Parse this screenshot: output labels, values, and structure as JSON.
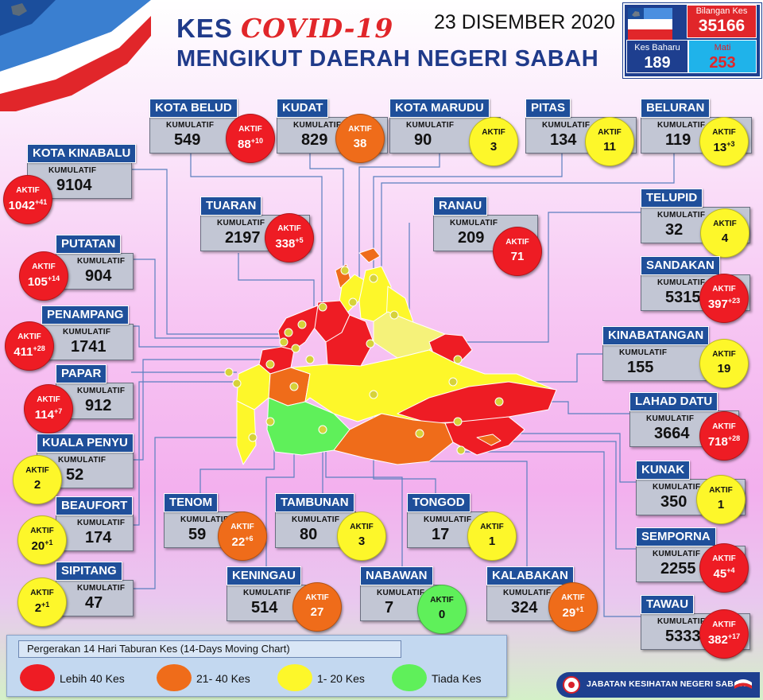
{
  "header": {
    "title_kes": "KES",
    "title_covid": "COVID-19",
    "title_line2": "MENGIKUT DAERAH NEGERI SABAH",
    "date": "23 DISEMBER 2020"
  },
  "summary": {
    "total_label": "Bilangan Kes",
    "total_value": "35166",
    "new_label": "Kes Baharu",
    "new_value": "189",
    "death_label": "Mati",
    "death_value": "253"
  },
  "labels": {
    "kumulatif": "KUMULATIF",
    "aktif": "AKTIF"
  },
  "colors": {
    "red": "#ee1c24",
    "orange": "#ef6c1a",
    "yellow": "#fdf72a",
    "green": "#5ff05a",
    "header_blue": "#1f4f9a",
    "title_blue": "#1f3a8a"
  },
  "districts": [
    {
      "name": "KOTA BELUD",
      "kumulatif": "549",
      "aktif": "88",
      "aktif_new": "+10",
      "level": "red"
    },
    {
      "name": "KUDAT",
      "kumulatif": "829",
      "aktif": "38",
      "aktif_new": "",
      "level": "orange"
    },
    {
      "name": "KOTA MARUDU",
      "kumulatif": "90",
      "aktif": "3",
      "aktif_new": "",
      "level": "yellow"
    },
    {
      "name": "PITAS",
      "kumulatif": "134",
      "aktif": "11",
      "aktif_new": "",
      "level": "yellow"
    },
    {
      "name": "BELURAN",
      "kumulatif": "119",
      "aktif": "13",
      "aktif_new": "+3",
      "level": "yellow"
    },
    {
      "name": "KOTA KINABALU",
      "kumulatif": "9104",
      "aktif": "1042",
      "aktif_new": "+41",
      "level": "red"
    },
    {
      "name": "TUARAN",
      "kumulatif": "2197",
      "aktif": "338",
      "aktif_new": "+5",
      "level": "red"
    },
    {
      "name": "RANAU",
      "kumulatif": "209",
      "aktif": "71",
      "aktif_new": "",
      "level": "red"
    },
    {
      "name": "TELUPID",
      "kumulatif": "32",
      "aktif": "4",
      "aktif_new": "",
      "level": "yellow"
    },
    {
      "name": "PUTATAN",
      "kumulatif": "904",
      "aktif": "105",
      "aktif_new": "+14",
      "level": "red"
    },
    {
      "name": "SANDAKAN",
      "kumulatif": "5315",
      "aktif": "397",
      "aktif_new": "+23",
      "level": "red"
    },
    {
      "name": "PENAMPANG",
      "kumulatif": "1741",
      "aktif": "411",
      "aktif_new": "+28",
      "level": "red"
    },
    {
      "name": "KINABATANGAN",
      "kumulatif": "155",
      "aktif": "19",
      "aktif_new": "",
      "level": "yellow"
    },
    {
      "name": "PAPAR",
      "kumulatif": "912",
      "aktif": "114",
      "aktif_new": "+7",
      "level": "red"
    },
    {
      "name": "LAHAD DATU",
      "kumulatif": "3664",
      "aktif": "718",
      "aktif_new": "+28",
      "level": "red"
    },
    {
      "name": "KUALA PENYU",
      "kumulatif": "52",
      "aktif": "2",
      "aktif_new": "",
      "level": "yellow"
    },
    {
      "name": "KUNAK",
      "kumulatif": "350",
      "aktif": "1",
      "aktif_new": "",
      "level": "yellow"
    },
    {
      "name": "TENOM",
      "kumulatif": "59",
      "aktif": "22",
      "aktif_new": "+6",
      "level": "orange"
    },
    {
      "name": "TAMBUNAN",
      "kumulatif": "80",
      "aktif": "3",
      "aktif_new": "",
      "level": "yellow"
    },
    {
      "name": "TONGOD",
      "kumulatif": "17",
      "aktif": "1",
      "aktif_new": "",
      "level": "yellow"
    },
    {
      "name": "BEAUFORT",
      "kumulatif": "174",
      "aktif": "20",
      "aktif_new": "+1",
      "level": "yellow"
    },
    {
      "name": "SEMPORNA",
      "kumulatif": "2255",
      "aktif": "45",
      "aktif_new": "+4",
      "level": "red"
    },
    {
      "name": "SIPITANG",
      "kumulatif": "47",
      "aktif": "2",
      "aktif_new": "+1",
      "level": "yellow"
    },
    {
      "name": "KENINGAU",
      "kumulatif": "514",
      "aktif": "27",
      "aktif_new": "",
      "level": "orange"
    },
    {
      "name": "NABAWAN",
      "kumulatif": "7",
      "aktif": "0",
      "aktif_new": "",
      "level": "green"
    },
    {
      "name": "KALABAKAN",
      "kumulatif": "324",
      "aktif": "29",
      "aktif_new": "+1",
      "level": "orange"
    },
    {
      "name": "TAWAU",
      "kumulatif": "5333",
      "aktif": "382",
      "aktif_new": "+17",
      "level": "red"
    }
  ],
  "legend": {
    "title": "Pergerakan 14 Hari Taburan Kes (14-Days Moving Chart)",
    "items": [
      {
        "label": "Lebih 40 Kes",
        "level": "red"
      },
      {
        "label": "21- 40 Kes",
        "level": "orange"
      },
      {
        "label": "1- 20 Kes",
        "level": "yellow"
      },
      {
        "label": "Tiada Kes",
        "level": "green"
      }
    ]
  },
  "footer": {
    "department": "JABATAN KESIHATAN NEGERI SABAH"
  }
}
